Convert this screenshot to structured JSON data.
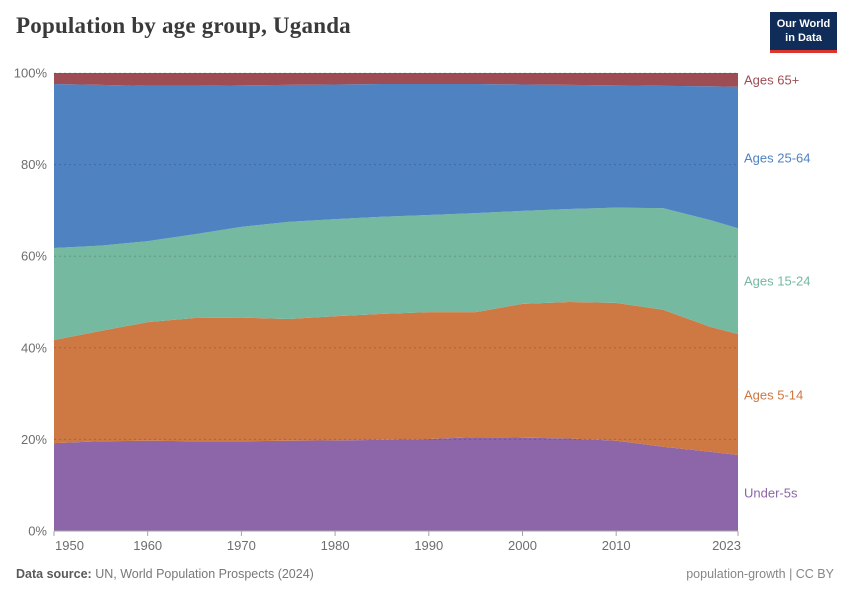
{
  "header": {
    "title": "Population by age group, Uganda",
    "logo_line1": "Our World",
    "logo_line2": "in Data",
    "logo_bg_color": "#102d5a",
    "logo_accent_color": "#dc352b"
  },
  "footer": {
    "source_label": "Data source:",
    "source_text": " UN, World Population Prospects (2024)",
    "right_text": "population-growth | CC BY"
  },
  "chart_data": {
    "type": "area",
    "stacked": true,
    "relative": true,
    "unit": "%",
    "title": "Population by age group, Uganda",
    "xlim": [
      1950,
      2023
    ],
    "ylim": [
      0,
      100
    ],
    "grid": "horizontal-dashed",
    "legend_position": "right",
    "x": [
      1950,
      1955,
      1960,
      1965,
      1970,
      1975,
      1980,
      1985,
      1990,
      1995,
      2000,
      2005,
      2010,
      2015,
      2020,
      2023
    ],
    "series": [
      {
        "id": "under-5s",
        "label": "Under-5s",
        "color": "#8d65a9",
        "values": [
          19.2,
          19.6,
          19.7,
          19.6,
          19.6,
          19.7,
          19.8,
          19.9,
          20.1,
          20.5,
          20.4,
          20.2,
          19.7,
          18.4,
          17.3,
          16.6
        ]
      },
      {
        "id": "ages-5-14",
        "label": "Ages 5-14",
        "color": "#ce7844",
        "values": [
          22.5,
          24.1,
          25.9,
          26.9,
          27.0,
          26.6,
          27.1,
          27.5,
          27.7,
          27.3,
          29.2,
          29.8,
          30.1,
          29.9,
          27.3,
          26.4
        ]
      },
      {
        "id": "ages-15-24",
        "label": "Ages 15-24",
        "color": "#74b9a0",
        "values": [
          20.1,
          18.6,
          17.7,
          18.3,
          19.8,
          21.2,
          21.2,
          21.2,
          21.2,
          21.6,
          20.3,
          20.3,
          20.8,
          22.2,
          23.3,
          23.1
        ]
      },
      {
        "id": "ages-25-64",
        "label": "Ages 25-64",
        "color": "#4f82c0",
        "values": [
          35.8,
          35.1,
          33.9,
          32.4,
          30.9,
          29.9,
          29.4,
          29.0,
          28.6,
          28.2,
          27.6,
          27.1,
          26.7,
          26.7,
          29.2,
          30.9
        ]
      },
      {
        "id": "ages-65plus",
        "label": "Ages 65+",
        "color": "#9e4d54",
        "values": [
          2.4,
          2.6,
          2.8,
          2.8,
          2.7,
          2.6,
          2.5,
          2.4,
          2.4,
          2.4,
          2.5,
          2.6,
          2.7,
          2.8,
          2.9,
          3.0
        ]
      }
    ],
    "x_ticks": [
      {
        "year": 1950,
        "label": "1950"
      },
      {
        "year": 1960,
        "label": "1960"
      },
      {
        "year": 1970,
        "label": "1970"
      },
      {
        "year": 1980,
        "label": "1980"
      },
      {
        "year": 1990,
        "label": "1990"
      },
      {
        "year": 2000,
        "label": "2000"
      },
      {
        "year": 2010,
        "label": "2010"
      },
      {
        "year": 2023,
        "label": "2023"
      }
    ],
    "y_ticks": [
      {
        "value": 0,
        "label": "0%"
      },
      {
        "value": 20,
        "label": "20%"
      },
      {
        "value": 40,
        "label": "40%"
      },
      {
        "value": 60,
        "label": "60%"
      },
      {
        "value": 80,
        "label": "80%"
      },
      {
        "value": 100,
        "label": "100%"
      }
    ]
  }
}
